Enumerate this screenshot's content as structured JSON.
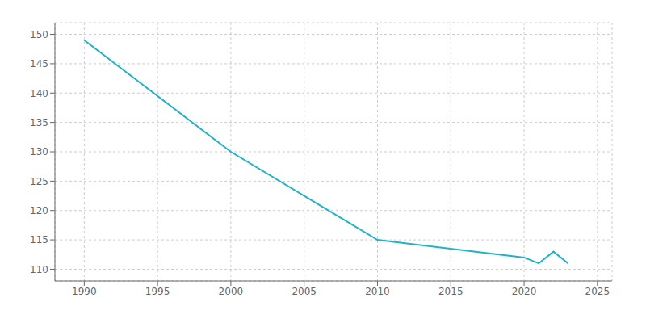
{
  "chart_data": {
    "type": "line",
    "x": [
      1990,
      2000,
      2010,
      2020,
      2021,
      2022,
      2023
    ],
    "values": [
      149,
      130,
      115,
      112,
      111,
      113,
      111
    ],
    "color": "#20B2C8",
    "xlim": [
      1988,
      2026
    ],
    "ylim": [
      108,
      152
    ],
    "xticks": [
      1990,
      1995,
      2000,
      2005,
      2010,
      2015,
      2020,
      2025
    ],
    "yticks": [
      110,
      115,
      120,
      125,
      130,
      135,
      140,
      145,
      150
    ],
    "grid": true
  }
}
